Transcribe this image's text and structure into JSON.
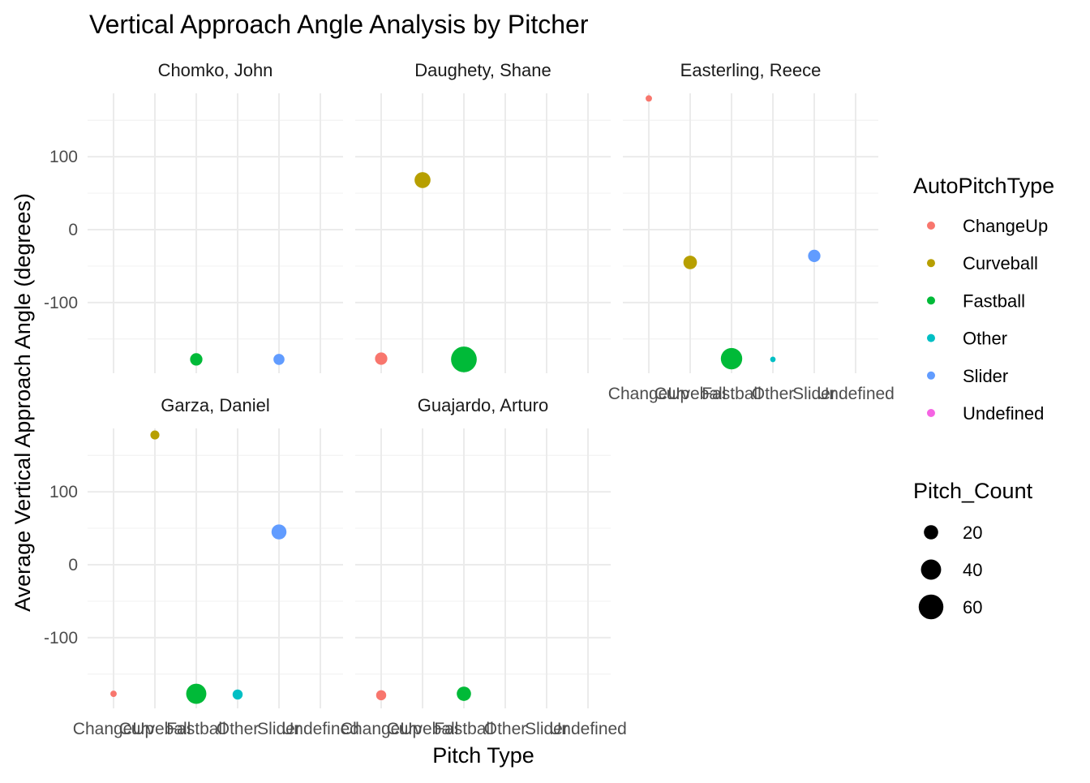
{
  "chart_data": {
    "type": "scatter",
    "title": "Vertical Approach Angle Analysis by Pitcher",
    "xlabel": "Pitch Type",
    "ylabel": "Average Vertical Approach Angle (degrees)",
    "x_categories": [
      "ChangeUp",
      "Curveball",
      "Fastball",
      "Other",
      "Slider",
      "Undefined"
    ],
    "y_ticks": [
      100,
      0,
      -100
    ],
    "y_tick_labels": [
      "100",
      "0",
      "-100"
    ],
    "ylim": [
      -197,
      187
    ],
    "grid": true,
    "legend_position": "right",
    "color_legend": {
      "title": "AutoPitchType",
      "entries": [
        {
          "label": "ChangeUp",
          "color": "#F8766D"
        },
        {
          "label": "Curveball",
          "color": "#B79F00"
        },
        {
          "label": "Fastball",
          "color": "#00BA38"
        },
        {
          "label": "Other",
          "color": "#00BFC4"
        },
        {
          "label": "Slider",
          "color": "#619CFF"
        },
        {
          "label": "Undefined",
          "color": "#F564E3"
        }
      ]
    },
    "size_legend": {
      "title": "Pitch_Count",
      "entries": [
        {
          "label": "20",
          "value": 20
        },
        {
          "label": "40",
          "value": 40
        },
        {
          "label": "60",
          "value": 60
        }
      ]
    },
    "facets": [
      {
        "pitcher": "Chomko, John",
        "points": [
          {
            "pitch_type": "Fastball",
            "vaa": -178,
            "pitch_count": 15
          },
          {
            "pitch_type": "Slider",
            "vaa": -178,
            "pitch_count": 12
          }
        ]
      },
      {
        "pitcher": "Daughety, Shane",
        "points": [
          {
            "pitch_type": "ChangeUp",
            "vaa": -177,
            "pitch_count": 15
          },
          {
            "pitch_type": "Curveball",
            "vaa": 68,
            "pitch_count": 25
          },
          {
            "pitch_type": "Fastball",
            "vaa": -178,
            "pitch_count": 65
          }
        ]
      },
      {
        "pitcher": "Easterling, Reece",
        "points": [
          {
            "pitch_type": "ChangeUp",
            "vaa": 180,
            "pitch_count": 4
          },
          {
            "pitch_type": "Curveball",
            "vaa": -45,
            "pitch_count": 18
          },
          {
            "pitch_type": "Fastball",
            "vaa": -177,
            "pitch_count": 45
          },
          {
            "pitch_type": "Other",
            "vaa": -178,
            "pitch_count": 3
          },
          {
            "pitch_type": "Slider",
            "vaa": -36,
            "pitch_count": 15
          }
        ]
      },
      {
        "pitcher": "Garza, Daniel",
        "points": [
          {
            "pitch_type": "ChangeUp",
            "vaa": -177,
            "pitch_count": 4
          },
          {
            "pitch_type": "Curveball",
            "vaa": 178,
            "pitch_count": 8
          },
          {
            "pitch_type": "Fastball",
            "vaa": -177,
            "pitch_count": 40
          },
          {
            "pitch_type": "Other",
            "vaa": -178,
            "pitch_count": 10
          },
          {
            "pitch_type": "Slider",
            "vaa": 45,
            "pitch_count": 22
          }
        ]
      },
      {
        "pitcher": "Guajardo, Arturo",
        "points": [
          {
            "pitch_type": "ChangeUp",
            "vaa": -179,
            "pitch_count": 10
          },
          {
            "pitch_type": "Fastball",
            "vaa": -177,
            "pitch_count": 20
          }
        ]
      }
    ]
  }
}
